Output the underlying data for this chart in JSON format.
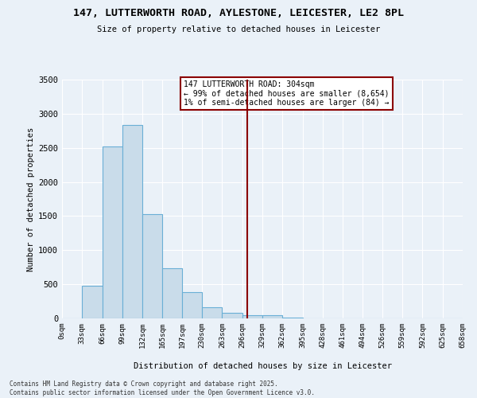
{
  "title": "147, LUTTERWORTH ROAD, AYLESTONE, LEICESTER, LE2 8PL",
  "subtitle": "Size of property relative to detached houses in Leicester",
  "xlabel": "Distribution of detached houses by size in Leicester",
  "ylabel": "Number of detached properties",
  "bin_edges": [
    0,
    33,
    66,
    99,
    132,
    165,
    197,
    230,
    263,
    296,
    329,
    362,
    395,
    428,
    461,
    494,
    526,
    559,
    592,
    625,
    658
  ],
  "bar_values": [
    5,
    480,
    2520,
    2840,
    1530,
    730,
    380,
    160,
    80,
    50,
    50,
    10,
    0,
    0,
    0,
    0,
    0,
    0,
    0,
    0
  ],
  "bar_color": "#c9dcea",
  "bar_edge_color": "#6aafd6",
  "property_line_x": 304,
  "property_line_color": "#8b0000",
  "annotation_text": "147 LUTTERWORTH ROAD: 304sqm\n← 99% of detached houses are smaller (8,654)\n1% of semi-detached houses are larger (84) →",
  "annotation_box_edgecolor": "#8b0000",
  "annotation_text_color": "#000000",
  "ylim": [
    0,
    3500
  ],
  "yticks": [
    0,
    500,
    1000,
    1500,
    2000,
    2500,
    3000,
    3500
  ],
  "background_color": "#eaf1f8",
  "grid_color": "#ffffff",
  "footer_line1": "Contains HM Land Registry data © Crown copyright and database right 2025.",
  "footer_line2": "Contains public sector information licensed under the Open Government Licence v3.0."
}
